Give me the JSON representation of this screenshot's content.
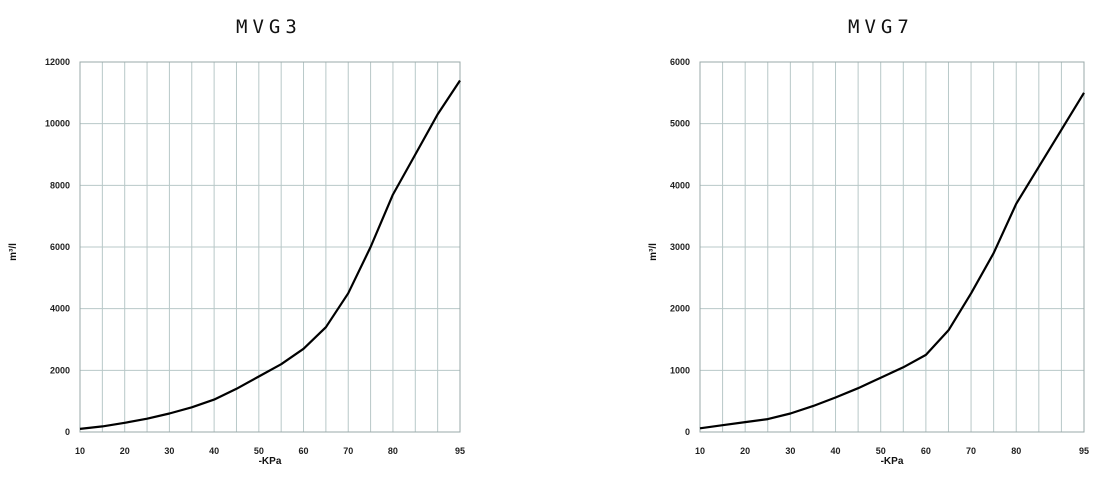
{
  "chart_data": [
    {
      "type": "line",
      "title": "MVG3",
      "xlabel": "-KPa",
      "ylabel": "m³/l",
      "xlim": [
        10,
        95
      ],
      "ylim": [
        0,
        12000
      ],
      "xticks": [
        10,
        20,
        30,
        40,
        50,
        60,
        70,
        80,
        95
      ],
      "yticks": [
        0,
        2000,
        4000,
        6000,
        8000,
        10000,
        12000
      ],
      "grid": true,
      "legend": "none",
      "series": [
        {
          "x": [
            10,
            15,
            20,
            25,
            30,
            35,
            40,
            45,
            50,
            55,
            60,
            65,
            70,
            75,
            80,
            85,
            90,
            95
          ],
          "y": [
            100,
            180,
            300,
            430,
            600,
            800,
            1050,
            1400,
            1800,
            2200,
            2700,
            3400,
            4500,
            6000,
            7700,
            9000,
            10300,
            11400
          ]
        }
      ]
    },
    {
      "type": "line",
      "title": "MVG7",
      "xlabel": "-KPa",
      "ylabel": "m³/l",
      "xlim": [
        10,
        95
      ],
      "ylim": [
        0,
        6000
      ],
      "xticks": [
        10,
        20,
        30,
        40,
        50,
        60,
        70,
        80,
        95
      ],
      "yticks": [
        0,
        1000,
        2000,
        3000,
        4000,
        5000,
        6000
      ],
      "grid": true,
      "legend": "none",
      "series": [
        {
          "x": [
            10,
            15,
            20,
            25,
            30,
            35,
            40,
            45,
            50,
            55,
            60,
            65,
            70,
            75,
            80,
            85,
            90,
            95
          ],
          "y": [
            60,
            110,
            160,
            210,
            300,
            420,
            560,
            710,
            880,
            1050,
            1250,
            1650,
            2250,
            2900,
            3700,
            4300,
            4900,
            5500
          ]
        }
      ]
    }
  ]
}
